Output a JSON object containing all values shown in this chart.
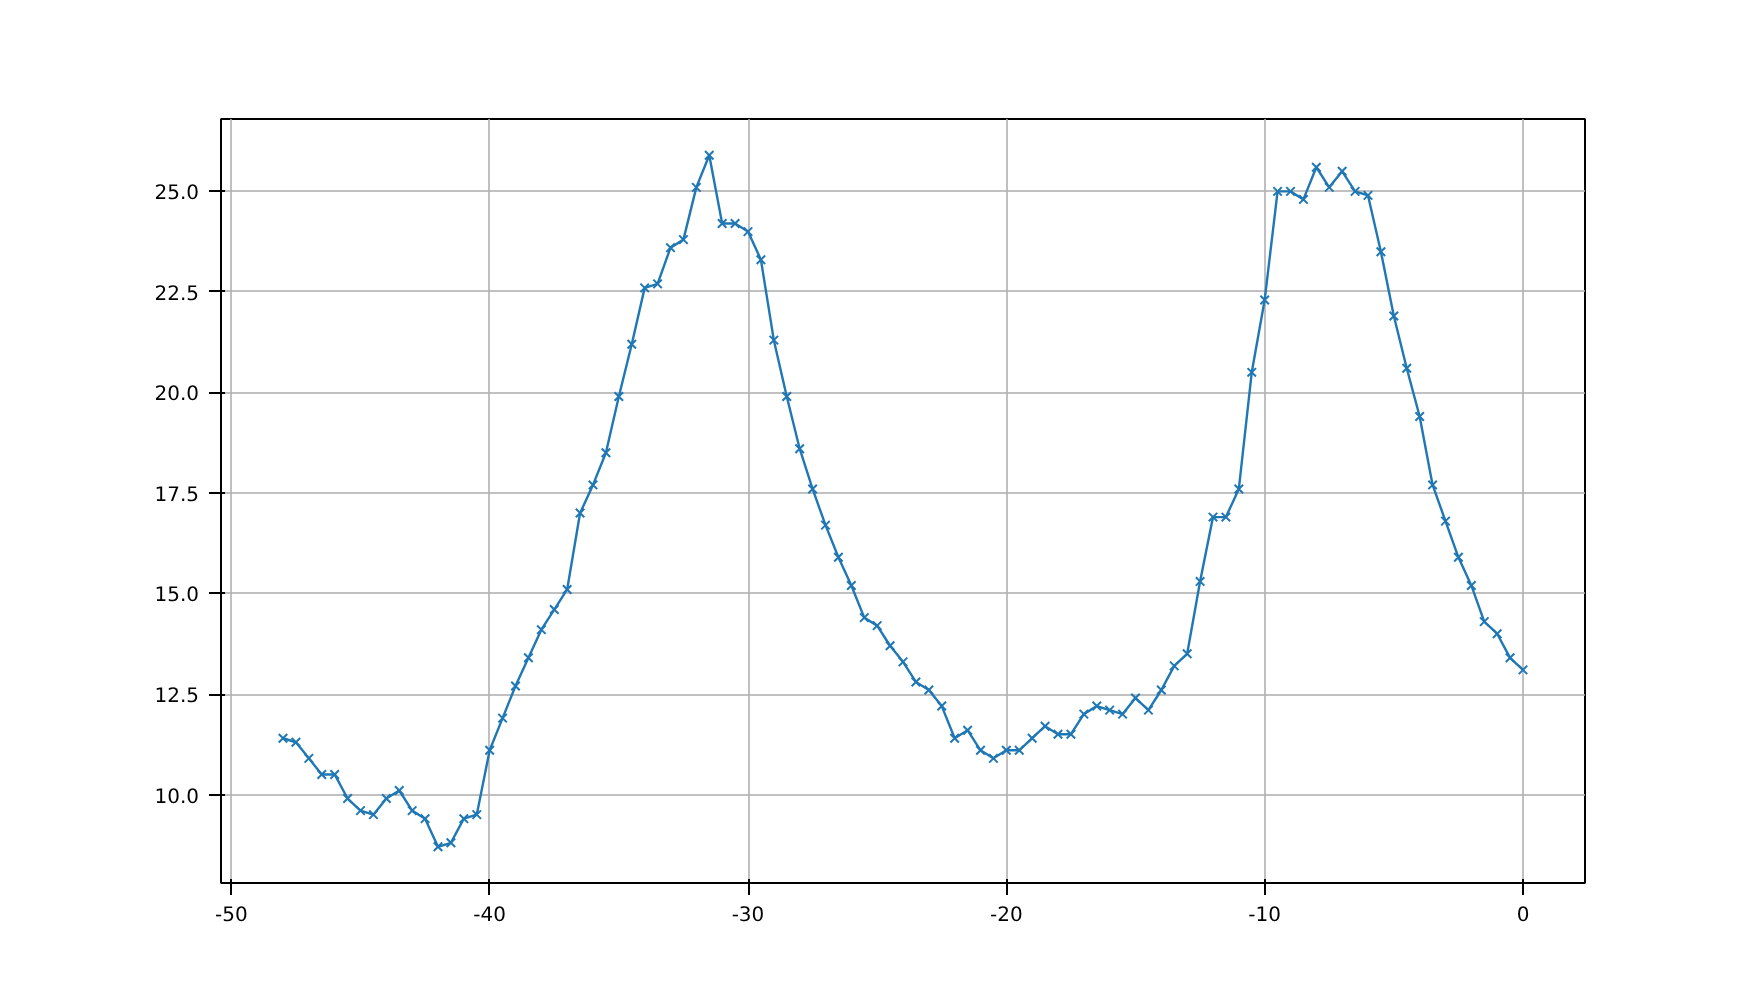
{
  "chart_data": {
    "type": "line",
    "marker": "cross",
    "grid": true,
    "x": [
      -48,
      -47.5,
      -47,
      -46.5,
      -46,
      -45.5,
      -45,
      -44.5,
      -44,
      -43.5,
      -43,
      -42.5,
      -42,
      -41.5,
      -41,
      -40.5,
      -40,
      -39.5,
      -39,
      -38.5,
      -38,
      -37.5,
      -37,
      -36.5,
      -36,
      -35.5,
      -35,
      -34.5,
      -34,
      -33.5,
      -33,
      -32.5,
      -32,
      -31.5,
      -31,
      -30.5,
      -30,
      -29.5,
      -29,
      -28.5,
      -28,
      -27.5,
      -27,
      -26.5,
      -26,
      -25.5,
      -25,
      -24.5,
      -24,
      -23.5,
      -23,
      -22.5,
      -22,
      -21.5,
      -21,
      -20.5,
      -20,
      -19.5,
      -19,
      -18.5,
      -18,
      -17.5,
      -17,
      -16.5,
      -16,
      -15.5,
      -15,
      -14.5,
      -14,
      -13.5,
      -13,
      -12.5,
      -12,
      -11.5,
      -11,
      -10.5,
      -10,
      -9.5,
      -9,
      -8.5,
      -8,
      -7.5,
      -7,
      -6.5,
      -6,
      -5.5,
      -5,
      -4.5,
      -4,
      -3.5,
      -3,
      -2.5,
      -2,
      -1.5,
      -1,
      -0.5,
      0
    ],
    "series": [
      {
        "color": "#1f77b4",
        "values": [
          11.4,
          11.3,
          10.9,
          10.5,
          10.5,
          9.9,
          9.6,
          9.5,
          9.9,
          10.1,
          9.6,
          9.4,
          8.7,
          8.8,
          9.4,
          9.5,
          11.1,
          11.9,
          12.7,
          13.4,
          14.1,
          14.6,
          15.1,
          17.0,
          17.7,
          18.5,
          19.9,
          21.2,
          22.6,
          22.7,
          23.6,
          23.8,
          25.1,
          25.9,
          24.2,
          24.2,
          24.0,
          23.3,
          21.3,
          19.9,
          18.6,
          17.6,
          16.7,
          15.9,
          15.2,
          14.4,
          14.2,
          13.7,
          13.3,
          12.8,
          12.6,
          12.2,
          11.4,
          11.6,
          11.1,
          10.9,
          11.1,
          11.1,
          11.4,
          11.7,
          11.5,
          11.5,
          12.0,
          12.2,
          12.1,
          12.0,
          12.4,
          12.1,
          12.6,
          13.2,
          13.5,
          15.3,
          16.9,
          16.9,
          17.6,
          20.5,
          22.3,
          25.0,
          25.0,
          24.8,
          25.6,
          25.1,
          25.5,
          25.0,
          24.9,
          23.5,
          21.9,
          20.6,
          19.4,
          17.7,
          16.8,
          15.9,
          15.2,
          14.3,
          14.0,
          13.4,
          13.1
        ]
      }
    ],
    "xlim": [
      -50.4,
      2.4
    ],
    "ylim": [
      7.8,
      26.8
    ],
    "xticks": [
      -50,
      -40,
      -30,
      -20,
      -10,
      0
    ],
    "yticks": [
      {
        "value": 10,
        "label": "10.0"
      },
      {
        "value": 12.5,
        "label": "12.5"
      },
      {
        "value": 15,
        "label": "15.0"
      },
      {
        "value": 17.5,
        "label": "17.5"
      },
      {
        "value": 20,
        "label": "20.0"
      },
      {
        "value": 22.5,
        "label": "22.5"
      },
      {
        "value": 25,
        "label": "25.0"
      }
    ]
  }
}
